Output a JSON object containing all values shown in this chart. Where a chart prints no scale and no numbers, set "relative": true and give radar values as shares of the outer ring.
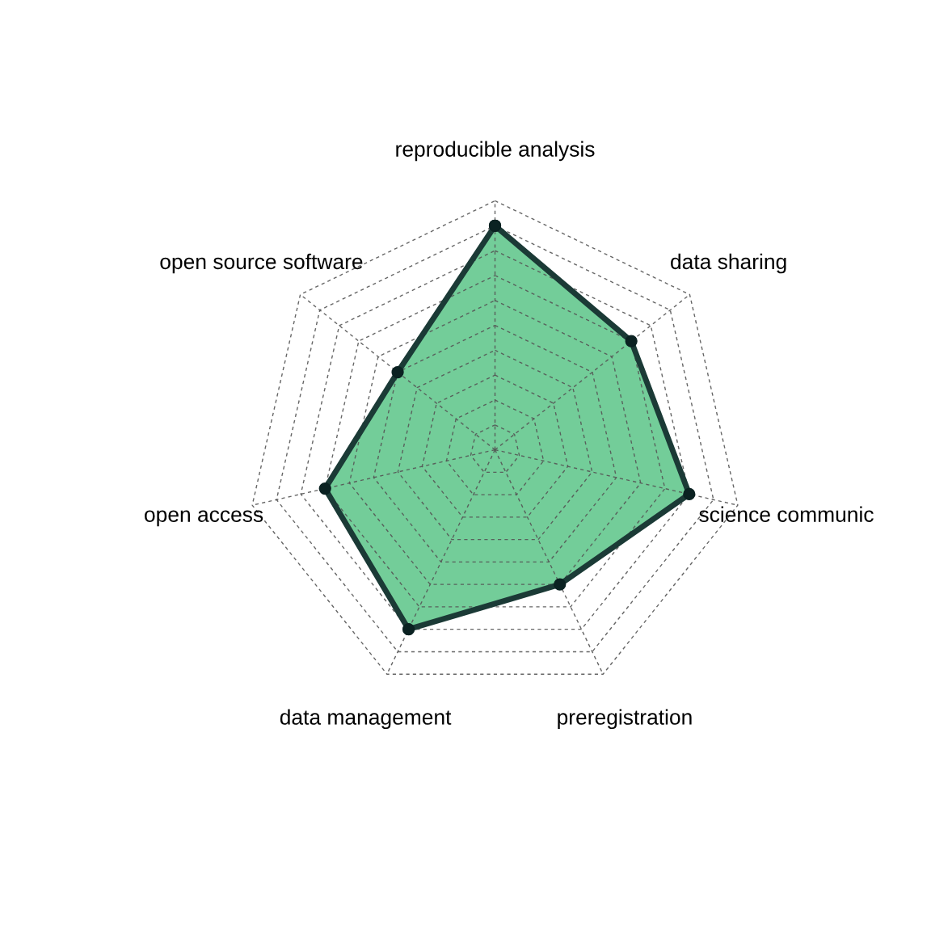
{
  "chart_data": {
    "type": "radar",
    "relative": true,
    "grid": true,
    "marker": "circle",
    "line_style": "solid",
    "categories": [
      "reproducible analysis",
      "data sharing",
      "science communic",
      "preregistration",
      "data management",
      "open access",
      "open source software"
    ],
    "series": [
      {
        "color": "#73cd99",
        "values": [
          0.9,
          0.7,
          0.8,
          0.6,
          0.8,
          0.7,
          0.5
        ]
      }
    ]
  }
}
